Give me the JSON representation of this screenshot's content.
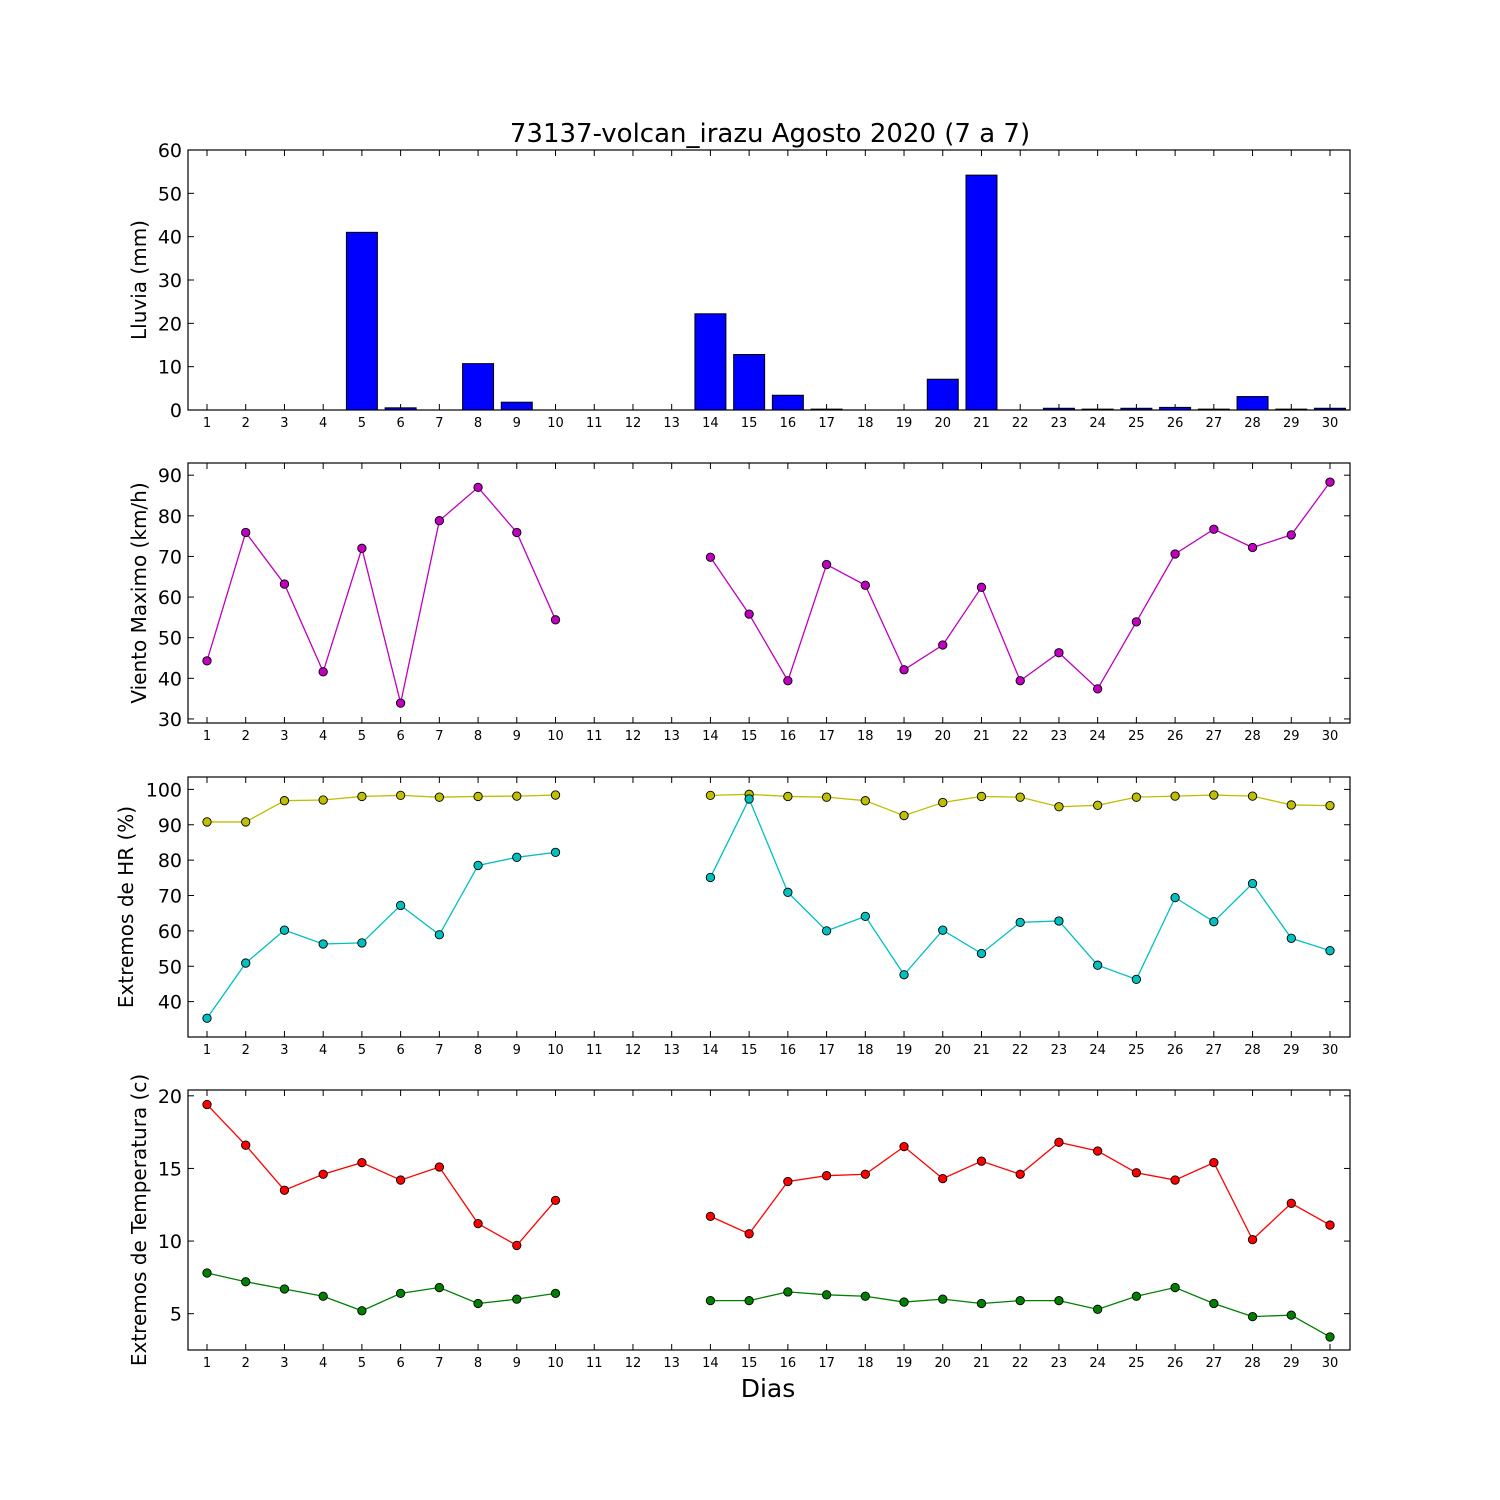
{
  "title": "73137-volcan_irazu Agosto 2020  (7 a 7)",
  "xlabel": "Dias",
  "days": [
    1,
    2,
    3,
    4,
    5,
    6,
    7,
    8,
    9,
    10,
    11,
    12,
    13,
    14,
    15,
    16,
    17,
    18,
    19,
    20,
    21,
    22,
    23,
    24,
    25,
    26,
    27,
    28,
    29,
    30
  ],
  "chart_data": [
    {
      "type": "bar",
      "ylabel": "Lluvia (mm)",
      "ylim": [
        0,
        60
      ],
      "yticks": [
        0,
        10,
        20,
        30,
        40,
        50,
        60
      ],
      "bar_color": "#0000ff",
      "series": [
        {
          "values": [
            0,
            0,
            0,
            0,
            41,
            0.5,
            0,
            10.7,
            1.8,
            0,
            0,
            0,
            0,
            22.2,
            12.8,
            3.4,
            0.2,
            0,
            0,
            7.1,
            54.2,
            0,
            0.4,
            0.2,
            0.4,
            0.6,
            0.2,
            3.1,
            0.2,
            0.4
          ]
        }
      ]
    },
    {
      "type": "line",
      "ylabel": "Viento Maximo (km/h)",
      "ylim": [
        29,
        93
      ],
      "yticks": [
        30,
        40,
        50,
        60,
        70,
        80,
        90
      ],
      "series": [
        {
          "color": "#bf00bf",
          "values": [
            44.3,
            75.9,
            63.2,
            41.6,
            72.0,
            33.9,
            78.8,
            87.0,
            75.9,
            54.4,
            null,
            null,
            null,
            69.8,
            55.8,
            39.4,
            68.0,
            62.9,
            42.1,
            48.2,
            62.4,
            39.4,
            46.3,
            37.4,
            53.9,
            70.6,
            76.7,
            72.2,
            75.3,
            88.3
          ]
        }
      ]
    },
    {
      "type": "line",
      "ylabel": "Extremos de HR (%)",
      "ylim": [
        30,
        103.5
      ],
      "yticks": [
        40,
        50,
        60,
        70,
        80,
        90,
        100
      ],
      "series": [
        {
          "color": "#bfbf00",
          "values": [
            90.8,
            90.8,
            96.8,
            97.0,
            98.0,
            98.3,
            97.8,
            98.0,
            98.1,
            98.4,
            null,
            null,
            null,
            98.3,
            98.6,
            98.0,
            97.8,
            96.8,
            92.6,
            96.3,
            98.0,
            97.8,
            95.1,
            95.5,
            97.8,
            98.1,
            98.4,
            98.1,
            95.6,
            95.4
          ]
        },
        {
          "color": "#00bfbf",
          "values": [
            35.3,
            50.9,
            60.2,
            56.3,
            56.6,
            67.2,
            58.9,
            78.5,
            80.8,
            82.2,
            null,
            null,
            null,
            75.1,
            97.3,
            70.9,
            60.0,
            64.1,
            47.6,
            60.2,
            53.6,
            62.4,
            62.8,
            50.3,
            46.3,
            69.4,
            62.6,
            73.4,
            57.9,
            54.4
          ]
        }
      ]
    },
    {
      "type": "line",
      "ylabel": "Extremos de Temperatura (c)",
      "ylim": [
        2.5,
        20.4
      ],
      "yticks": [
        5,
        10,
        15,
        20
      ],
      "series": [
        {
          "color": "#ff0000",
          "values": [
            19.4,
            16.6,
            13.5,
            14.6,
            15.4,
            14.2,
            15.1,
            11.2,
            9.7,
            12.8,
            null,
            null,
            null,
            11.7,
            10.5,
            14.1,
            14.5,
            14.6,
            16.5,
            14.3,
            15.5,
            14.6,
            16.8,
            16.2,
            14.7,
            14.2,
            15.4,
            10.1,
            12.6,
            11.1
          ]
        },
        {
          "color": "#007f00",
          "values": [
            7.8,
            7.2,
            6.7,
            6.2,
            5.2,
            6.4,
            6.8,
            5.7,
            6.0,
            6.4,
            null,
            null,
            null,
            5.9,
            5.9,
            6.5,
            6.3,
            6.2,
            5.8,
            6.0,
            5.7,
            5.9,
            5.9,
            5.3,
            6.2,
            6.8,
            5.7,
            4.8,
            4.9,
            3.4
          ]
        }
      ]
    }
  ]
}
